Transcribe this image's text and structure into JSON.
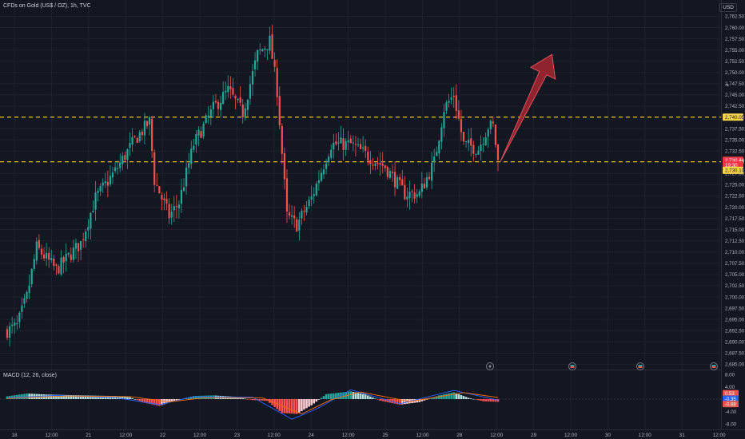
{
  "header": {
    "title": "CFDs on Gold (US$ / OZ), 1h, TVC",
    "currency": "USD"
  },
  "macd": {
    "label": "MACD (12, 26, close)",
    "axis_ticks": [
      "8.00",
      "4.00",
      "-4.00",
      "-8.00"
    ],
    "badges": [
      {
        "text": "0.53",
        "color": "#ef5350"
      },
      {
        "text": "-0.35",
        "color": "#2962ff"
      },
      {
        "text": "-0.88",
        "color": "#ef5350"
      }
    ]
  },
  "price_axis": {
    "ticks": [
      "2,762.50",
      "2,760.00",
      "2,757.50",
      "2,755.00",
      "2,752.50",
      "2,750.00",
      "2,747.50",
      "2,745.00",
      "2,742.50",
      "2,740.00",
      "2,737.50",
      "2,735.00",
      "2,732.50",
      "2,730.00",
      "2,727.50",
      "2,725.00",
      "2,722.50",
      "2,720.00",
      "2,717.50",
      "2,715.00",
      "2,712.50",
      "2,710.00",
      "2,707.50",
      "2,705.00",
      "2,702.50",
      "2,700.00",
      "2,697.50",
      "2,695.00",
      "2,692.50",
      "2,690.00",
      "2,687.50",
      "2,685.00"
    ],
    "labels": [
      {
        "text": "2,740.05",
        "price": 2740.05,
        "bg": "#f7d44c",
        "fg": "#131722"
      },
      {
        "text": "2,730.44",
        "price": 2730.44,
        "bg": "#f23645",
        "fg": "#ffffff"
      },
      {
        "text": "19:30",
        "price": 2729.4,
        "bg": "#f23645",
        "fg": "#ffffff"
      },
      {
        "text": "2,730.10",
        "price": 2728.2,
        "bg": "#f7d44c",
        "fg": "#131722"
      }
    ]
  },
  "time_axis": [
    "18",
    "12:00",
    "21",
    "12:00",
    "22",
    "12:00",
    "23",
    "12:00",
    "24",
    "12:00",
    "25",
    "12:00",
    "28",
    "12:00",
    "29",
    "12:00",
    "30",
    "12:00",
    "31",
    "12:00",
    "Nov"
  ],
  "chart_data": {
    "type": "candlestick",
    "title": "CFDs on Gold (US$ / OZ), 1h, TVC",
    "symbol": "CFDs on Gold (US$ / OZ)",
    "interval": "1h",
    "source": "TVC",
    "currency": "USD",
    "ylim": [
      2684,
      2764
    ],
    "grid": true,
    "colors": {
      "up": "#26a69a",
      "down": "#ef5350",
      "level": "#f5c518",
      "arrow": "#b22833",
      "macd": "#2962ff",
      "signal": "#ff6d00"
    },
    "levels": [
      2740.05,
      2730.1
    ],
    "last_price": 2730.44,
    "waypoints": [
      [
        0,
        2692.5
      ],
      [
        4,
        2693.5
      ],
      [
        8,
        2700
      ],
      [
        12,
        2711
      ],
      [
        20,
        2706
      ],
      [
        30,
        2712
      ],
      [
        36,
        2722
      ],
      [
        44,
        2728
      ],
      [
        52,
        2735
      ],
      [
        58,
        2739
      ],
      [
        60,
        2726
      ],
      [
        66,
        2718
      ],
      [
        70,
        2721
      ],
      [
        76,
        2734
      ],
      [
        84,
        2742
      ],
      [
        90,
        2746
      ],
      [
        96,
        2741
      ],
      [
        102,
        2754
      ],
      [
        107,
        2757
      ],
      [
        110,
        2746
      ],
      [
        114,
        2718
      ],
      [
        118,
        2716
      ],
      [
        124,
        2722
      ],
      [
        132,
        2734
      ],
      [
        140,
        2734
      ],
      [
        148,
        2731
      ],
      [
        154,
        2729
      ],
      [
        162,
        2723
      ],
      [
        168,
        2723
      ],
      [
        174,
        2730
      ],
      [
        178,
        2742
      ],
      [
        182,
        2745
      ],
      [
        186,
        2734
      ],
      [
        192,
        2733
      ],
      [
        196,
        2738
      ],
      [
        198,
        2738
      ],
      [
        200,
        2730.4
      ]
    ],
    "arrow": {
      "from": [
        200,
        2730.5
      ],
      "to": [
        222,
        2754
      ]
    },
    "macd_ylim": [
      -8,
      8
    ],
    "macd_histogram_waypoints": [
      [
        0,
        0.9
      ],
      [
        8,
        1.8
      ],
      [
        16,
        1.5
      ],
      [
        30,
        1.2
      ],
      [
        44,
        1.0
      ],
      [
        50,
        0.6
      ],
      [
        56,
        -1.2
      ],
      [
        62,
        -2.2
      ],
      [
        68,
        -0.6
      ],
      [
        76,
        1.0
      ],
      [
        84,
        1.2
      ],
      [
        92,
        0.8
      ],
      [
        100,
        -0.3
      ],
      [
        106,
        -0.6
      ],
      [
        112,
        -4.5
      ],
      [
        118,
        -4.8
      ],
      [
        124,
        -2.0
      ],
      [
        130,
        1.6
      ],
      [
        140,
        2.5
      ],
      [
        146,
        1.5
      ],
      [
        152,
        -0.5
      ],
      [
        160,
        -1.8
      ],
      [
        168,
        -1.0
      ],
      [
        176,
        1.2
      ],
      [
        182,
        2.2
      ],
      [
        188,
        0.4
      ],
      [
        194,
        -0.7
      ],
      [
        200,
        -0.88
      ]
    ],
    "macd_line_waypoints": [
      [
        0,
        0.4
      ],
      [
        20,
        1.2
      ],
      [
        44,
        0.5
      ],
      [
        62,
        -1.8
      ],
      [
        76,
        0.8
      ],
      [
        100,
        0.6
      ],
      [
        116,
        -6.5
      ],
      [
        126,
        -3.2
      ],
      [
        140,
        3.0
      ],
      [
        160,
        -1.5
      ],
      [
        182,
        2.8
      ],
      [
        200,
        -0.35
      ]
    ],
    "signal_line_waypoints": [
      [
        0,
        0.2
      ],
      [
        24,
        1.0
      ],
      [
        50,
        0.8
      ],
      [
        66,
        -0.9
      ],
      [
        80,
        0.4
      ],
      [
        104,
        0.4
      ],
      [
        120,
        -4.8
      ],
      [
        132,
        -0.2
      ],
      [
        144,
        2.3
      ],
      [
        164,
        -0.8
      ],
      [
        186,
        2.1
      ],
      [
        200,
        0.53
      ]
    ]
  }
}
